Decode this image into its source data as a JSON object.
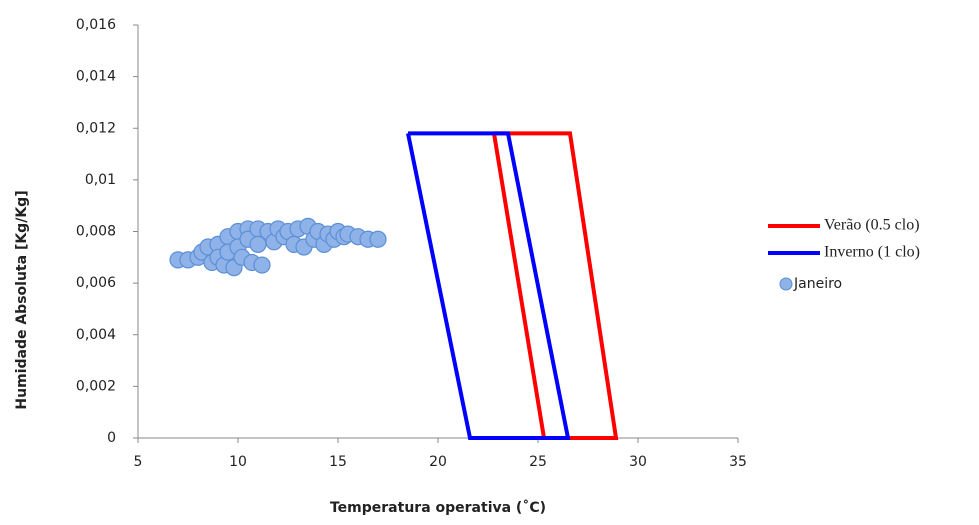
{
  "chart_data": {
    "type": "scatter",
    "x_label": "Temperatura operativa (˚C)",
    "y_label": "Humidade Absoluta [Kg/Kg]",
    "xlim": [
      5,
      35
    ],
    "xticks": [
      5,
      10,
      15,
      20,
      25,
      30,
      35
    ],
    "ylim": [
      0,
      0.016
    ],
    "yticks": [
      0,
      {
        "value": 0.002,
        "label": "0,002"
      },
      {
        "value": 0.004,
        "label": "0,004"
      },
      {
        "value": 0.006,
        "label": "0,006"
      },
      {
        "value": 0.008,
        "label": "0,008"
      },
      {
        "value": 0.01,
        "label": "0,01"
      },
      {
        "value": 0.012,
        "label": "0,012"
      },
      {
        "value": 0.014,
        "label": "0,014"
      },
      {
        "value": 0.016,
        "label": "0,016"
      }
    ],
    "grid": false,
    "legend": "right",
    "series": [
      {
        "name": "Verão (0.5 clo)",
        "type": "line",
        "color": "#ff0000",
        "x": [
          22.8,
          26.6,
          28.9,
          25.3,
          22.8
        ],
        "values": [
          0.0118,
          0.0118,
          0,
          0,
          0.0118
        ]
      },
      {
        "name": "Inverno (1 clo)",
        "type": "line",
        "color": "#0000ff",
        "x": [
          18.5,
          23.5,
          26.5,
          21.6,
          18.5
        ],
        "values": [
          0.0118,
          0.0118,
          0,
          0,
          0.0118
        ]
      },
      {
        "name": "Janeiro",
        "type": "scatter",
        "color": "#8fb3e8",
        "x": [
          7,
          7.5,
          8,
          8.2,
          8.5,
          8.7,
          9,
          9,
          9.3,
          9.5,
          9.5,
          9.8,
          10,
          10,
          10.2,
          10.5,
          10.5,
          10.7,
          11,
          11,
          11.2,
          11.5,
          11.8,
          12,
          12.3,
          12.5,
          12.8,
          13,
          13.3,
          13.5,
          13.8,
          14,
          14.3,
          14.5,
          14.8,
          15,
          15.3,
          15.5,
          16,
          16.5,
          17
        ],
        "values": [
          0.0069,
          0.0069,
          0.007,
          0.0072,
          0.0074,
          0.0068,
          0.0075,
          0.007,
          0.0067,
          0.0078,
          0.0072,
          0.0066,
          0.008,
          0.0074,
          0.007,
          0.0081,
          0.0077,
          0.0068,
          0.0081,
          0.0075,
          0.0067,
          0.008,
          0.0076,
          0.0081,
          0.0078,
          0.008,
          0.0075,
          0.0081,
          0.0074,
          0.0082,
          0.0077,
          0.008,
          0.0075,
          0.0079,
          0.0077,
          0.008,
          0.0078,
          0.0079,
          0.0078,
          0.0077,
          0.0077
        ]
      }
    ]
  }
}
